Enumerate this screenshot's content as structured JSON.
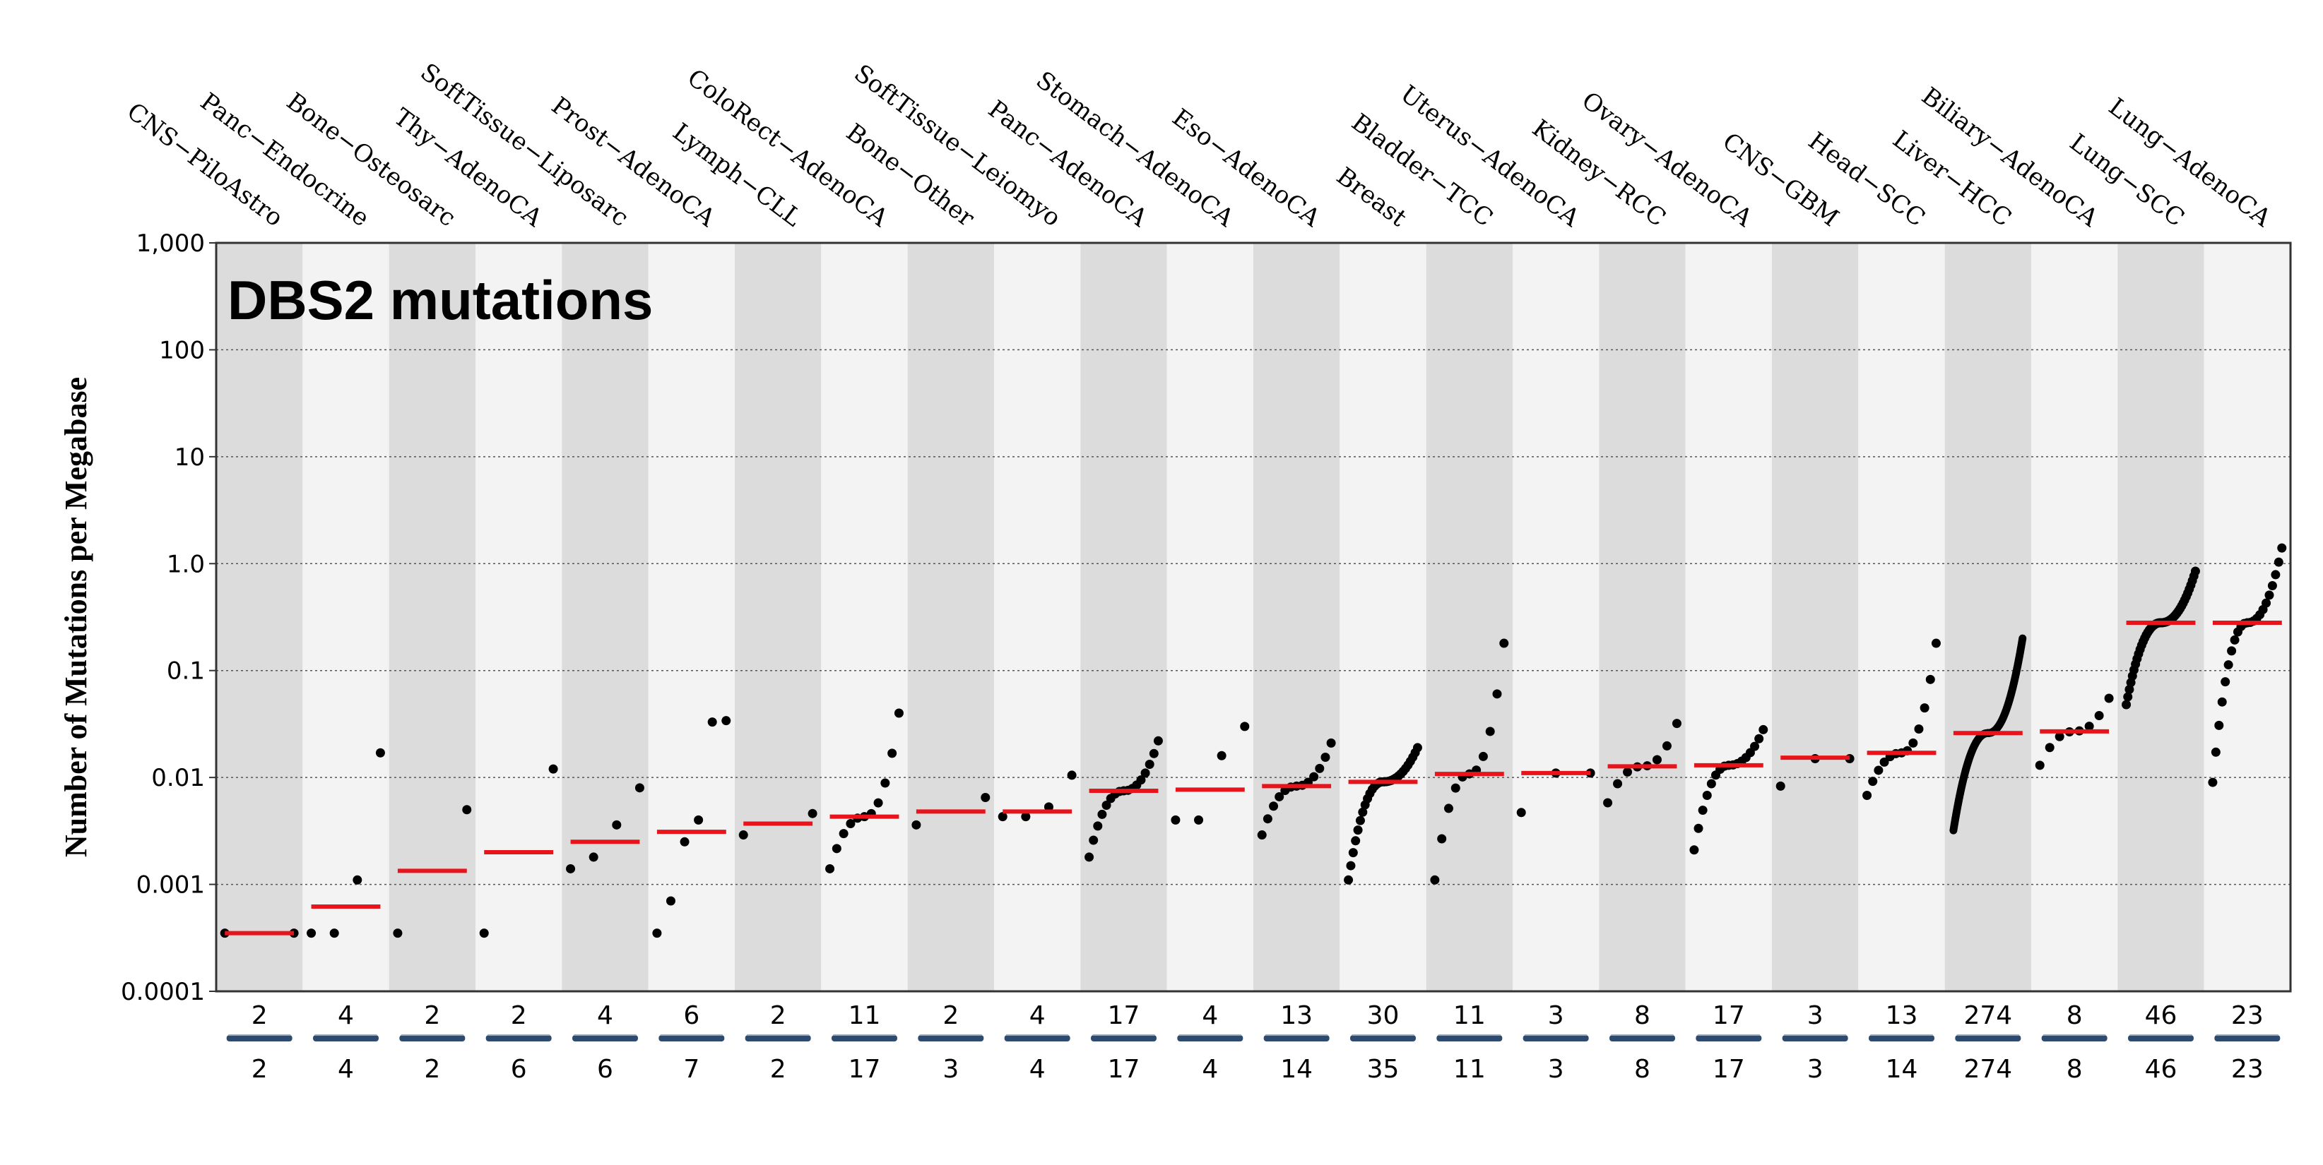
{
  "chart_data": {
    "type": "scatter",
    "title": "DBS2 mutations",
    "xlabel": "",
    "ylabel": "Number of Mutations per Megabase",
    "yscale": "log",
    "ylim": [
      0.0001,
      1000
    ],
    "yticks": [
      {
        "value": 1000,
        "label": "1,000"
      },
      {
        "value": 100,
        "label": "100"
      },
      {
        "value": 10,
        "label": "10"
      },
      {
        "value": 1,
        "label": "1.0"
      },
      {
        "value": 0.1,
        "label": "0.1"
      },
      {
        "value": 0.01,
        "label": "0.01"
      },
      {
        "value": 0.001,
        "label": "0.001"
      },
      {
        "value": 0.0001,
        "label": "0.0001"
      }
    ],
    "grid": true,
    "colors": {
      "median": "#e8141b",
      "point": "#000000",
      "band_dark": "#dcdcdc",
      "band_light": "#f3f3f3",
      "count_bar": "#2e4a6e"
    },
    "categories": [
      {
        "name": "CNS−PiloAstro",
        "n_mutated": "2",
        "n_total": "2",
        "median": 0.00035,
        "min": 0.00035,
        "max": 0.00035
      },
      {
        "name": "Panc−Endocrine",
        "n_mutated": "4",
        "n_total": "4",
        "median": 0.00062,
        "points": [
          0.00035,
          0.00035,
          0.0011,
          0.017
        ]
      },
      {
        "name": "Bone−Osteosarc",
        "n_mutated": "2",
        "n_total": "2",
        "median": 0.00134,
        "points": [
          0.00035,
          0.005
        ]
      },
      {
        "name": "Thy−AdenoCA",
        "n_mutated": "2",
        "n_total": "6",
        "median": 0.002,
        "points": [
          0.00035,
          0.012
        ]
      },
      {
        "name": "SoftTissue−Liposarc",
        "n_mutated": "4",
        "n_total": "6",
        "median": 0.0025,
        "points": [
          0.0014,
          0.0018,
          0.0036,
          0.008
        ]
      },
      {
        "name": "Prost−AdenoCA",
        "n_mutated": "6",
        "n_total": "7",
        "median": 0.0031,
        "points": [
          0.00035,
          0.0007,
          0.0025,
          0.004,
          0.033,
          0.034
        ]
      },
      {
        "name": "Lymph−CLL",
        "n_mutated": "2",
        "n_total": "2",
        "median": 0.0037,
        "points": [
          0.0029,
          0.0046
        ]
      },
      {
        "name": "ColoRect−AdenoCA",
        "n_mutated": "11",
        "n_total": "17",
        "median": 0.0043,
        "min": 0.0014,
        "max": 0.04
      },
      {
        "name": "Bone−Other",
        "n_mutated": "2",
        "n_total": "3",
        "median": 0.0048,
        "points": [
          0.0036,
          0.0065
        ]
      },
      {
        "name": "SoftTissue−Leiomyo",
        "n_mutated": "4",
        "n_total": "4",
        "median": 0.0048,
        "points": [
          0.0043,
          0.0043,
          0.0053,
          0.0105
        ]
      },
      {
        "name": "Panc−AdenoCA",
        "n_mutated": "17",
        "n_total": "17",
        "median": 0.0075,
        "min": 0.0018,
        "max": 0.022
      },
      {
        "name": "Stomach−AdenoCA",
        "n_mutated": "4",
        "n_total": "4",
        "median": 0.0077,
        "points": [
          0.004,
          0.004,
          0.016,
          0.03
        ]
      },
      {
        "name": "Eso−AdenoCA",
        "n_mutated": "13",
        "n_total": "14",
        "median": 0.0083,
        "min": 0.0029,
        "max": 0.021
      },
      {
        "name": "Breast",
        "n_mutated": "30",
        "n_total": "35",
        "median": 0.0091,
        "min": 0.0011,
        "max": 0.019
      },
      {
        "name": "Bladder−TCC",
        "n_mutated": "11",
        "n_total": "11",
        "median": 0.0108,
        "min": 0.0011,
        "max": 0.18
      },
      {
        "name": "Uterus−AdenoCA",
        "n_mutated": "3",
        "n_total": "3",
        "median": 0.011,
        "points": [
          0.0047,
          0.011,
          0.011
        ]
      },
      {
        "name": "Kidney−RCC",
        "n_mutated": "8",
        "n_total": "8",
        "median": 0.0127,
        "min": 0.0058,
        "max": 0.032
      },
      {
        "name": "Ovary−AdenoCA",
        "n_mutated": "17",
        "n_total": "17",
        "median": 0.013,
        "min": 0.0021,
        "max": 0.028
      },
      {
        "name": "CNS−GBM",
        "n_mutated": "3",
        "n_total": "3",
        "median": 0.0153,
        "points": [
          0.0083,
          0.015,
          0.015
        ]
      },
      {
        "name": "Head−SCC",
        "n_mutated": "13",
        "n_total": "14",
        "median": 0.017,
        "min": 0.0068,
        "max": 0.18
      },
      {
        "name": "Liver−HCC",
        "n_mutated": "274",
        "n_total": "274",
        "median": 0.026,
        "min": 0.0032,
        "max": 0.2
      },
      {
        "name": "Biliary−AdenoCA",
        "n_mutated": "8",
        "n_total": "8",
        "median": 0.027,
        "min": 0.013,
        "max": 0.055
      },
      {
        "name": "Lung−SCC",
        "n_mutated": "46",
        "n_total": "46",
        "median": 0.28,
        "min": 0.048,
        "max": 0.85
      },
      {
        "name": "Lung−AdenoCA",
        "n_mutated": "23",
        "n_total": "23",
        "median": 0.28,
        "min": 0.009,
        "max": 1.4
      }
    ]
  }
}
